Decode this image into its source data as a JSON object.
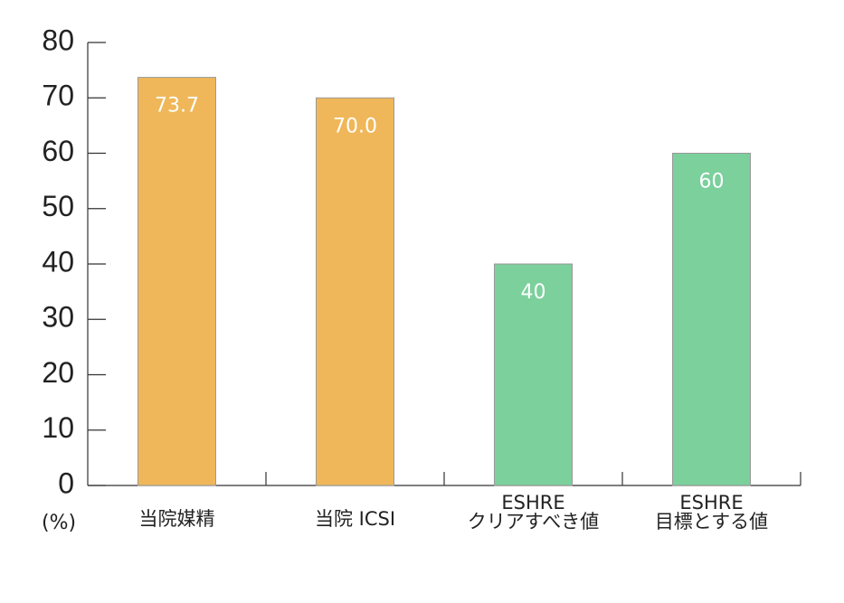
{
  "chart_data": {
    "type": "bar",
    "categories": [
      "当院媒精",
      "当院 ICSI",
      "ESHRE\nクリアすべき値",
      "ESHRE\n目標とする値"
    ],
    "values": [
      73.7,
      70,
      40,
      60
    ],
    "value_labels": [
      "73.7",
      "70.0",
      "40",
      "60"
    ],
    "colors": [
      "#efb759",
      "#efb759",
      "#7bd09c",
      "#7bd09c"
    ],
    "y_label": "(%)",
    "ylim": [
      0,
      80
    ],
    "yticks": [
      0,
      10,
      20,
      30,
      40,
      50,
      60,
      70,
      80
    ]
  }
}
